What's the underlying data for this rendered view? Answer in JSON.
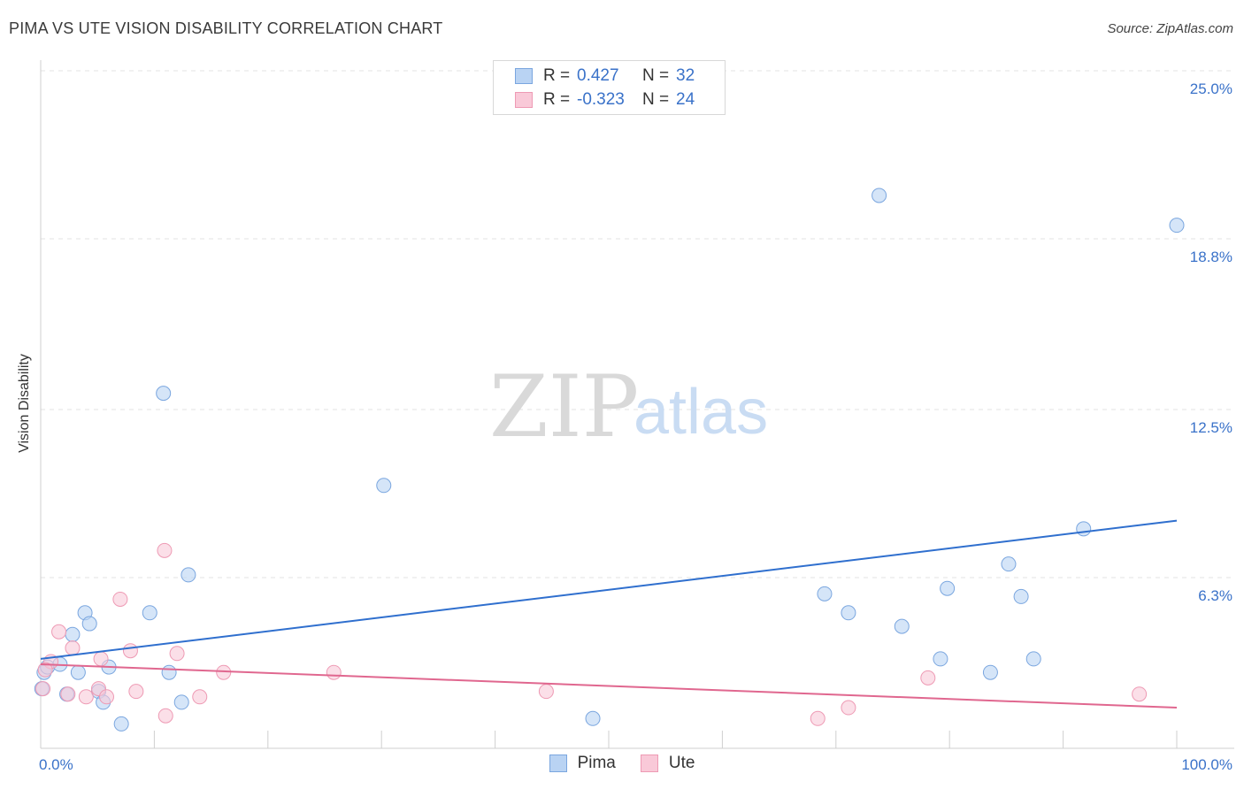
{
  "header": {
    "title": "PIMA VS UTE VISION DISABILITY CORRELATION CHART",
    "source": "Source: ZipAtlas.com"
  },
  "legend_top": {
    "rows": [
      {
        "r_label": "R =",
        "r_value": "0.427",
        "n_label": "N =",
        "n_value": "32"
      },
      {
        "r_label": "R =",
        "r_value": "-0.323",
        "n_label": "N =",
        "n_value": "24"
      }
    ]
  },
  "legend_bottom": [
    "Pima",
    "Ute"
  ],
  "watermark": {
    "zip": "ZIP",
    "atlas": "atlas"
  },
  "colors": {
    "pima_fill": "#b9d3f3",
    "pima_stroke": "#7aa6df",
    "pima_line": "#2f6fce",
    "ute_fill": "#f9c9d8",
    "ute_stroke": "#ee9ab4",
    "ute_line": "#e0678f",
    "axis_text": "#3a72c9",
    "grid": "#e3e3e3"
  },
  "chart_data": {
    "type": "scatter",
    "title": "PIMA VS UTE VISION DISABILITY CORRELATION CHART",
    "xlabel": "",
    "ylabel": "Vision Disability",
    "xlim": [
      0,
      100
    ],
    "ylim": [
      0,
      25
    ],
    "x_tick_labels": [
      "0.0%",
      "100.0%"
    ],
    "y_ticks": [
      6.3,
      12.5,
      18.8,
      25.0
    ],
    "y_tick_labels": [
      "6.3%",
      "12.5%",
      "18.8%",
      "25.0%"
    ],
    "grid": true,
    "series": [
      {
        "name": "Pima",
        "R": 0.427,
        "N": 32,
        "trend": {
          "x": [
            0,
            100
          ],
          "y": [
            3.3,
            8.4
          ]
        },
        "points": [
          {
            "x": 0.3,
            "y": 2.8
          },
          {
            "x": 0.6,
            "y": 3.0
          },
          {
            "x": 1.7,
            "y": 3.1
          },
          {
            "x": 2.3,
            "y": 2.0
          },
          {
            "x": 2.8,
            "y": 4.2
          },
          {
            "x": 3.3,
            "y": 2.8
          },
          {
            "x": 3.9,
            "y": 5.0
          },
          {
            "x": 4.3,
            "y": 4.6
          },
          {
            "x": 5.1,
            "y": 2.1
          },
          {
            "x": 5.5,
            "y": 1.7
          },
          {
            "x": 6.0,
            "y": 3.0
          },
          {
            "x": 7.1,
            "y": 0.9
          },
          {
            "x": 9.6,
            "y": 5.0
          },
          {
            "x": 10.8,
            "y": 13.1
          },
          {
            "x": 11.3,
            "y": 2.8
          },
          {
            "x": 12.4,
            "y": 1.7
          },
          {
            "x": 13.0,
            "y": 6.4
          },
          {
            "x": 30.2,
            "y": 9.7
          },
          {
            "x": 48.6,
            "y": 1.1
          },
          {
            "x": 69.0,
            "y": 5.7
          },
          {
            "x": 71.1,
            "y": 5.0
          },
          {
            "x": 73.8,
            "y": 20.4
          },
          {
            "x": 75.8,
            "y": 4.5
          },
          {
            "x": 79.2,
            "y": 3.3
          },
          {
            "x": 79.8,
            "y": 5.9
          },
          {
            "x": 83.6,
            "y": 2.8
          },
          {
            "x": 85.2,
            "y": 6.8
          },
          {
            "x": 86.3,
            "y": 5.6
          },
          {
            "x": 87.4,
            "y": 3.3
          },
          {
            "x": 91.8,
            "y": 8.1
          },
          {
            "x": 100.0,
            "y": 19.3
          },
          {
            "x": 0.1,
            "y": 2.2
          }
        ]
      },
      {
        "name": "Ute",
        "R": -0.323,
        "N": 24,
        "trend": {
          "x": [
            0,
            100
          ],
          "y": [
            3.1,
            1.5
          ]
        },
        "points": [
          {
            "x": 0.2,
            "y": 2.2
          },
          {
            "x": 0.9,
            "y": 3.2
          },
          {
            "x": 1.6,
            "y": 4.3
          },
          {
            "x": 2.4,
            "y": 2.0
          },
          {
            "x": 2.8,
            "y": 3.7
          },
          {
            "x": 4.0,
            "y": 1.9
          },
          {
            "x": 5.1,
            "y": 2.2
          },
          {
            "x": 5.3,
            "y": 3.3
          },
          {
            "x": 5.8,
            "y": 1.9
          },
          {
            "x": 7.0,
            "y": 5.5
          },
          {
            "x": 7.9,
            "y": 3.6
          },
          {
            "x": 8.4,
            "y": 2.1
          },
          {
            "x": 11.0,
            "y": 1.2
          },
          {
            "x": 10.9,
            "y": 7.3
          },
          {
            "x": 12.0,
            "y": 3.5
          },
          {
            "x": 14.0,
            "y": 1.9
          },
          {
            "x": 16.1,
            "y": 2.8
          },
          {
            "x": 25.8,
            "y": 2.8
          },
          {
            "x": 44.5,
            "y": 2.1
          },
          {
            "x": 68.4,
            "y": 1.1
          },
          {
            "x": 71.1,
            "y": 1.5
          },
          {
            "x": 78.1,
            "y": 2.6
          },
          {
            "x": 96.7,
            "y": 2.0
          },
          {
            "x": 0.4,
            "y": 2.9
          }
        ]
      }
    ]
  }
}
